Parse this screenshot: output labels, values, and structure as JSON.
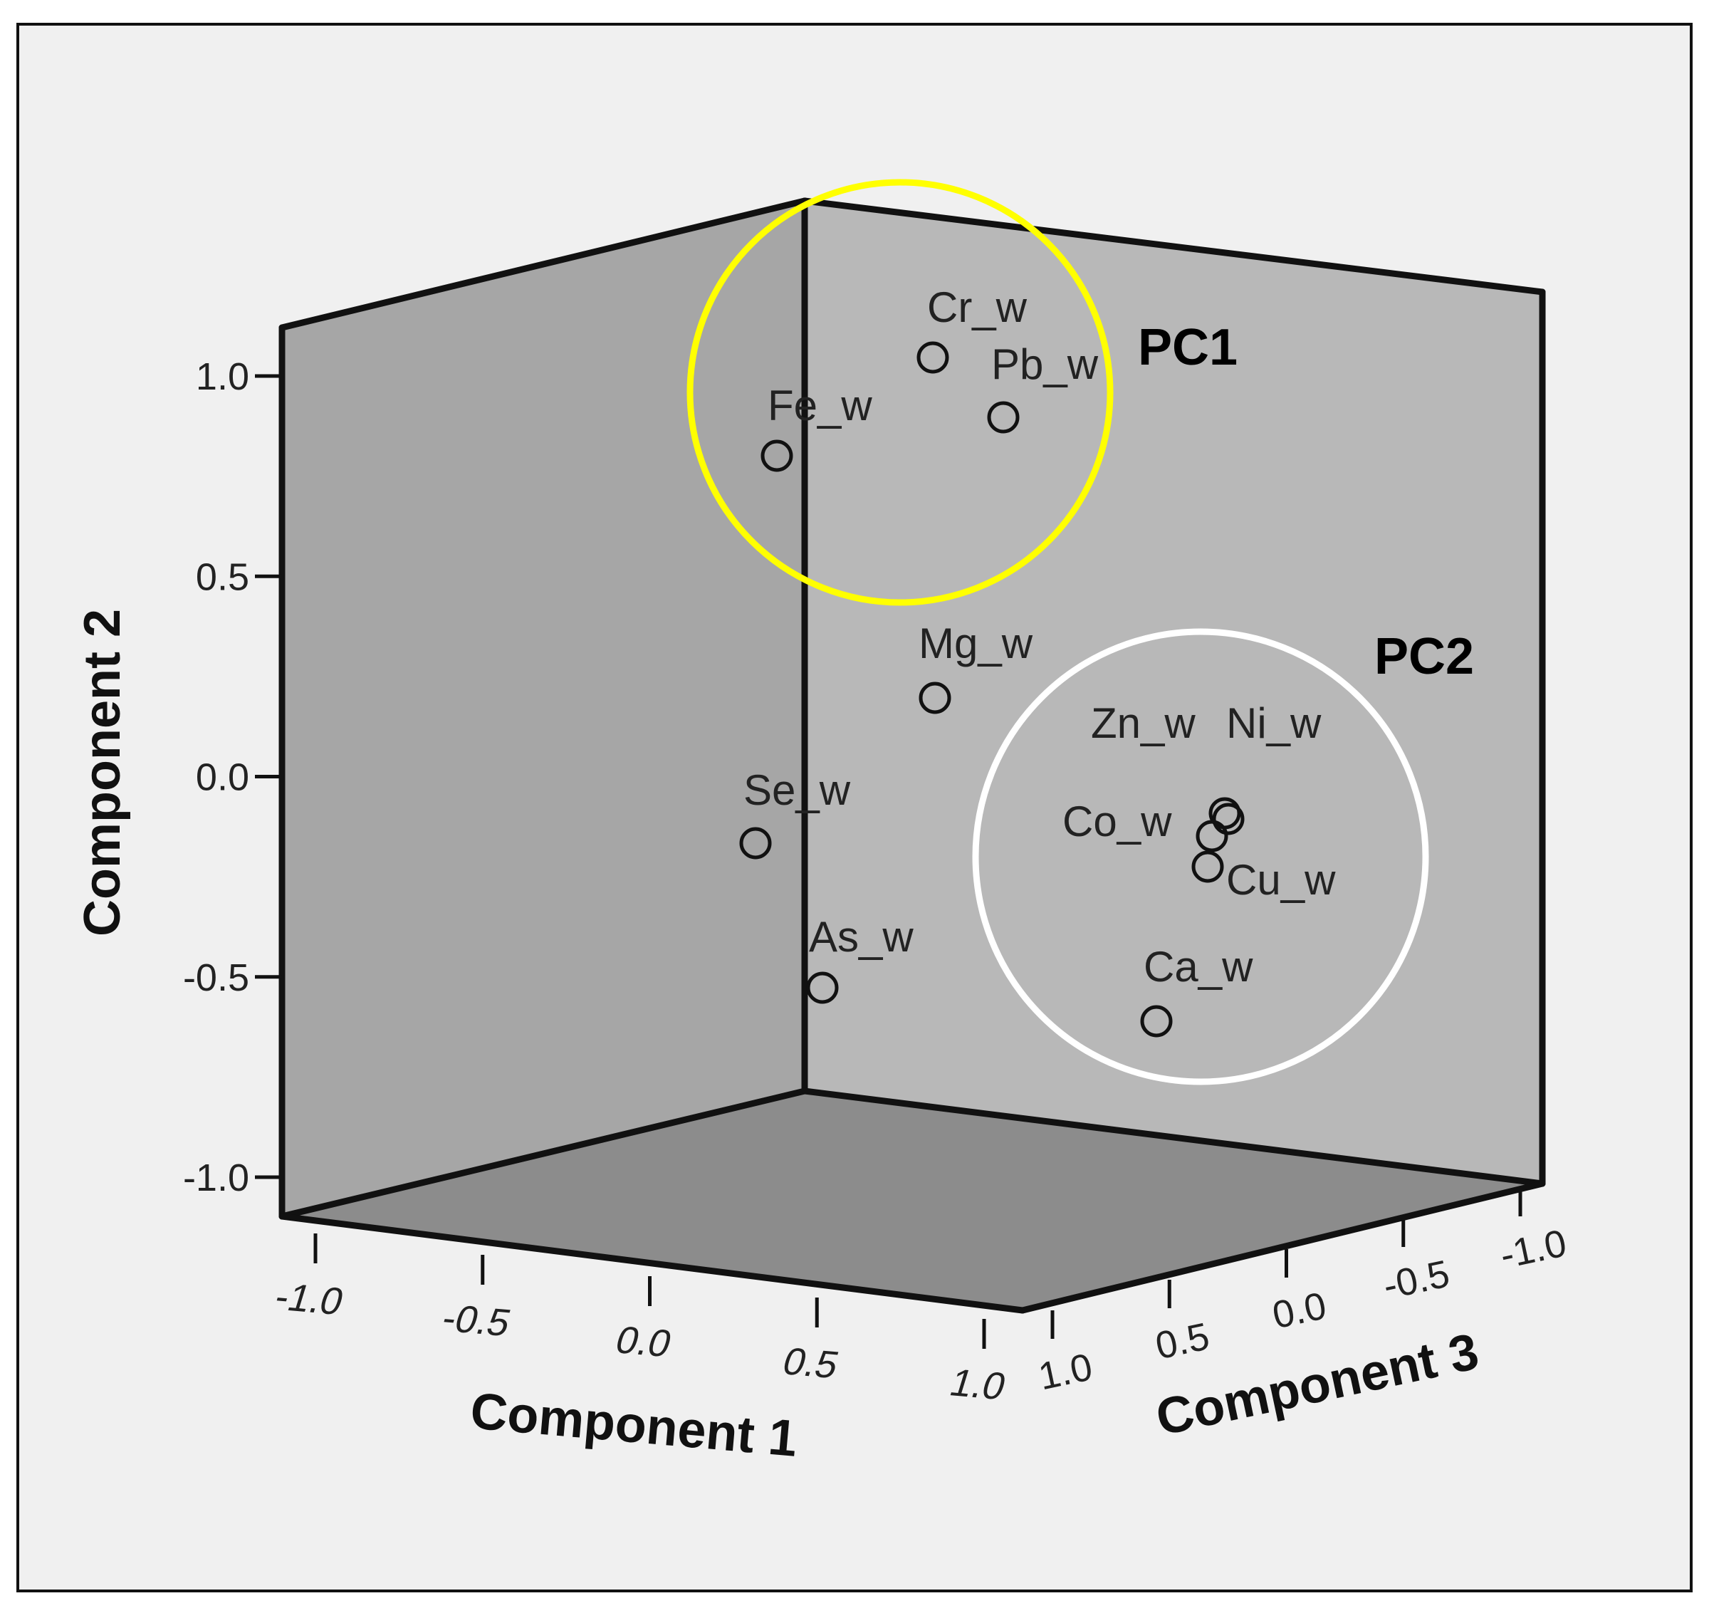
{
  "chart_data": {
    "type": "scatter",
    "projection": "3d",
    "title": "",
    "axes": {
      "x": {
        "label": "Component 1",
        "range": [
          -1.0,
          1.0
        ],
        "ticks": [
          "-1.0",
          "-0.5",
          "0.0",
          "0.5",
          "1.0"
        ]
      },
      "y": {
        "label": "Component 2",
        "range": [
          -1.0,
          1.0
        ],
        "ticks": [
          "-1.0",
          "-0.5",
          "0.0",
          "0.5",
          "1.0"
        ]
      },
      "z": {
        "label": "Component 3",
        "range": [
          -1.0,
          1.0
        ],
        "ticks": [
          "1.0",
          "0.5",
          "0.0",
          "-0.5",
          "-1.0"
        ]
      }
    },
    "points": [
      {
        "label": "Cr_w",
        "screen_ref": [
          1.1,
          0.0
        ]
      },
      {
        "label": "Pb_w",
        "screen_ref": [
          1.1,
          0.0
        ]
      },
      {
        "label": "Fe_w",
        "screen_ref": [
          1.1,
          0.0
        ]
      },
      {
        "label": "Mg_w",
        "screen_ref": [
          0.0,
          0.0
        ]
      },
      {
        "label": "Se_w",
        "screen_ref": [
          0.0,
          0.0
        ]
      },
      {
        "label": "As_w",
        "screen_ref": [
          0.0,
          0.0
        ]
      },
      {
        "label": "Zn_w",
        "screen_ref": [
          0.0,
          0.0
        ]
      },
      {
        "label": "Ni_w",
        "screen_ref": [
          0.0,
          0.0
        ]
      },
      {
        "label": "Co_w",
        "screen_ref": [
          0.0,
          0.0
        ]
      },
      {
        "label": "Cu_w",
        "screen_ref": [
          0.0,
          0.0
        ]
      },
      {
        "label": "Ca_w",
        "screen_ref": [
          0.0,
          0.0
        ]
      }
    ],
    "clusters": [
      {
        "label": "PC1",
        "color": "#ffff00",
        "members": [
          "Cr_w",
          "Pb_w",
          "Fe_w"
        ]
      },
      {
        "label": "PC2",
        "color": "#ffffff",
        "members": [
          "Zn_w",
          "Ni_w",
          "Co_w",
          "Cu_w",
          "Ca_w"
        ]
      }
    ],
    "colors": {
      "background": "#f0f0f0",
      "left_wall": "#a6a6a6",
      "back_wall": "#b8b8b8",
      "floor": "#8c8c8c",
      "frame": "#111111"
    }
  }
}
